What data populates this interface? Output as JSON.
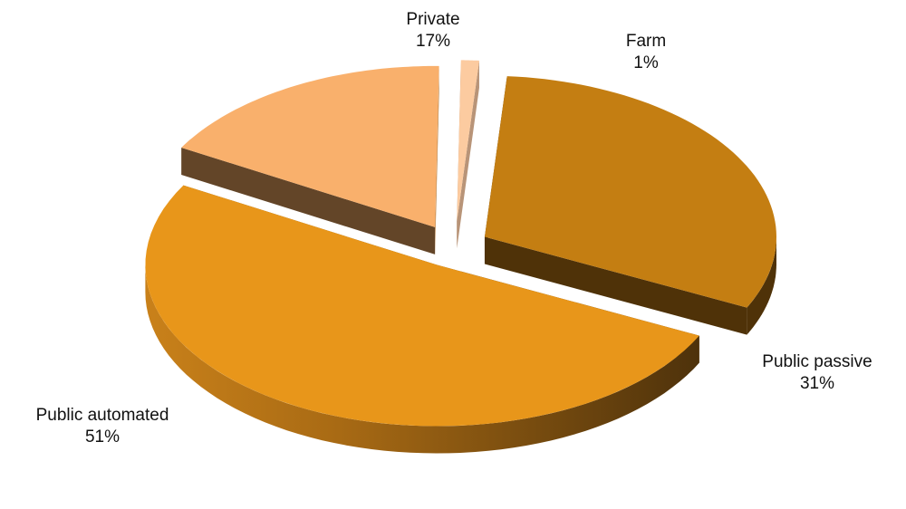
{
  "chart_data": {
    "type": "pie",
    "style": "3d-exploded",
    "title": "",
    "slices": [
      {
        "label": "Farm",
        "value": 1,
        "value_label": "1%",
        "color": "#FCCBA0",
        "side": "#B89478"
      },
      {
        "label": "Public passive",
        "value": 31,
        "value_label": "31%",
        "color": "#C47E12",
        "side": "#4F3208"
      },
      {
        "label": "Public automated",
        "value": 51,
        "value_label": "51%",
        "color": "#E8961A",
        "side": "#6A440E"
      },
      {
        "label": "Private",
        "value": 17,
        "value_label": "17%",
        "color": "#F9B06C",
        "side": "#634528"
      }
    ],
    "legend": "none",
    "data_labels": "outside"
  }
}
